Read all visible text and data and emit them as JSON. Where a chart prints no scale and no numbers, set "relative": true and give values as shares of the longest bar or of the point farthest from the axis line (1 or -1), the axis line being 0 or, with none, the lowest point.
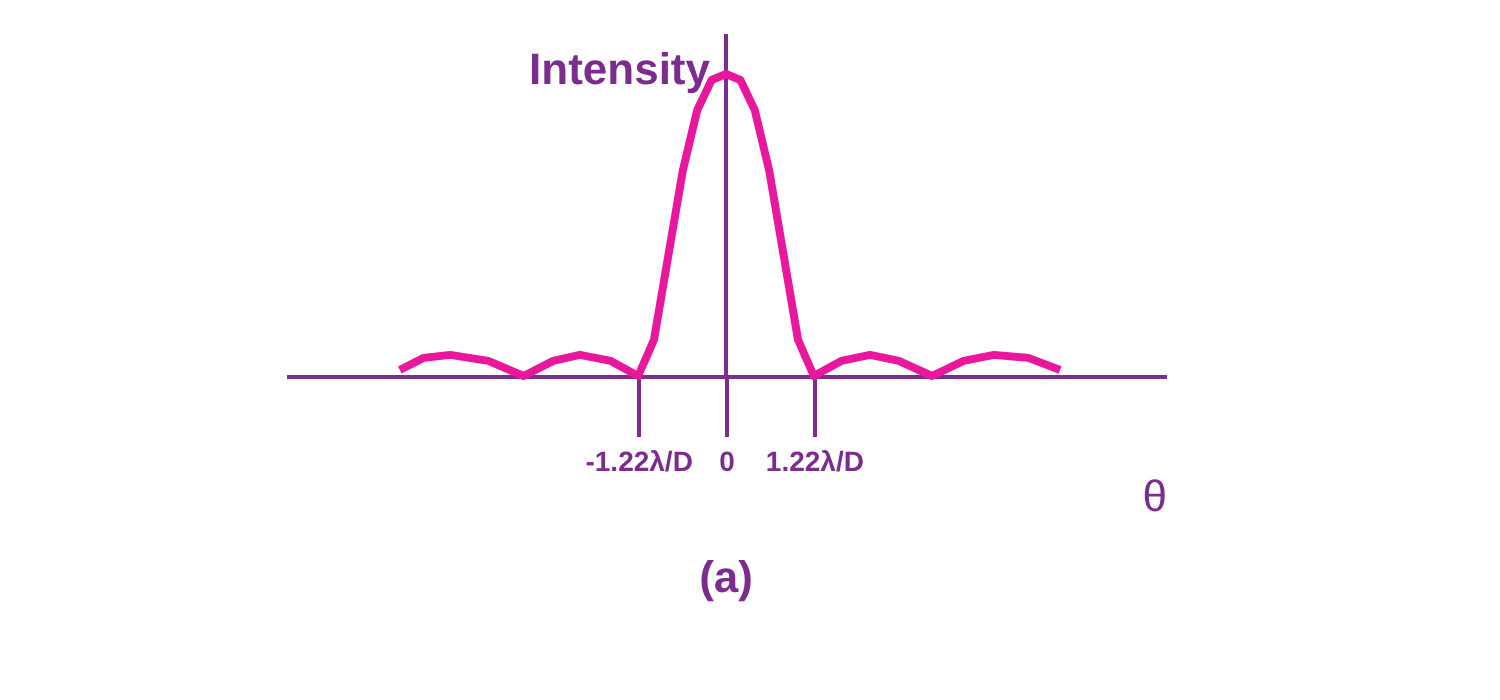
{
  "chart_data": {
    "type": "line",
    "relative": true,
    "title": "(a)",
    "xlabel": "θ",
    "ylabel": "Intensity",
    "x": [
      -4.53,
      -4.2,
      -3.83,
      -3.3,
      -2.81,
      -2.4,
      -2.03,
      -1.6,
      -1.22,
      -1.0,
      -0.8,
      -0.6,
      -0.4,
      -0.2,
      0,
      0.2,
      0.4,
      0.6,
      0.8,
      1.0,
      1.22,
      1.6,
      2.0,
      2.4,
      2.86,
      3.3,
      3.72,
      4.2,
      4.64
    ],
    "xlim": [
      -6.11,
      6.11
    ],
    "xticks": [
      {
        "value": -1.22,
        "label": "-1.22λ/D"
      },
      0,
      {
        "value": 1.22,
        "label": "1.22λ/D"
      }
    ],
    "series": [
      {
        "color": "#e8179b",
        "values": [
          0.02,
          0.06,
          0.07,
          0.05,
          0,
          0.05,
          0.07,
          0.05,
          0,
          0.12,
          0.4,
          0.68,
          0.88,
          0.98,
          1,
          0.98,
          0.88,
          0.68,
          0.4,
          0.12,
          0,
          0.05,
          0.07,
          0.05,
          0,
          0.05,
          0.07,
          0.06,
          0.02
        ]
      }
    ],
    "ref_lines": [
      {
        "axis": "x",
        "value": 0,
        "color": "#7b2d8e"
      }
    ],
    "grid": false
  }
}
